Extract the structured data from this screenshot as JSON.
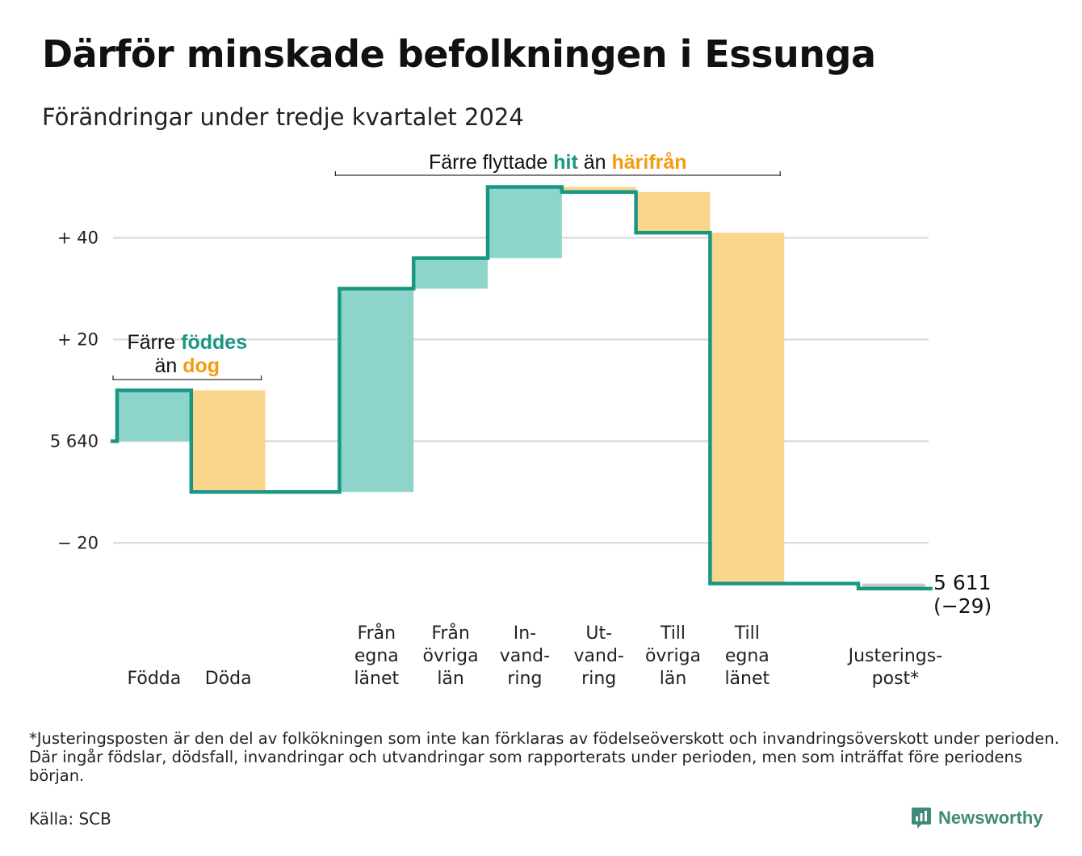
{
  "title": "Därför minskade befolkningen i Essunga",
  "subtitle": "Förändringar under tredje kvartalet 2024",
  "colors": {
    "inflow": "#1a9783",
    "inflow_fill": "#8dd5cb",
    "outflow": "#f39c12",
    "outflow_fill": "#fad58c",
    "adjustment_fill": "#c8c8c8",
    "gridline": "#dddddd",
    "brand": "#3f8a79"
  },
  "chart_data": {
    "type": "waterfall",
    "start_value": 5640,
    "end_value": 5611,
    "end_label": "5 611",
    "end_change_label": "(−29)",
    "y_ticks": [
      {
        "value": 40,
        "label": "+ 40"
      },
      {
        "value": 20,
        "label": "+ 20"
      },
      {
        "value": 0,
        "label": "5 640"
      },
      {
        "value": -20,
        "label": "− 20"
      }
    ],
    "ylim": [
      -36,
      55
    ],
    "grid": true,
    "steps": [
      {
        "label_lines": [
          "Födda"
        ],
        "delta": 10,
        "kind": "in"
      },
      {
        "label_lines": [
          "Döda"
        ],
        "delta": -20,
        "kind": "out"
      },
      {
        "label_lines": [],
        "delta": 0,
        "kind": "gap"
      },
      {
        "label_lines": [
          "Från",
          "egna",
          "länet"
        ],
        "delta": 40,
        "kind": "in"
      },
      {
        "label_lines": [
          "Från",
          "övriga",
          "län"
        ],
        "delta": 6,
        "kind": "in"
      },
      {
        "label_lines": [
          "In-",
          "vand-",
          "ring"
        ],
        "delta": 14,
        "kind": "in"
      },
      {
        "label_lines": [
          "Ut-",
          "vand-",
          "ring"
        ],
        "delta": -1,
        "kind": "out"
      },
      {
        "label_lines": [
          "Till",
          "övriga",
          "län"
        ],
        "delta": -8,
        "kind": "out"
      },
      {
        "label_lines": [
          "Till",
          "egna",
          "länet"
        ],
        "delta": -69,
        "kind": "out"
      },
      {
        "label_lines": [],
        "delta": 0,
        "kind": "gap"
      },
      {
        "label_lines": [
          "Justerings-",
          "post*"
        ],
        "delta": -1,
        "kind": "adjust"
      }
    ],
    "annotations": [
      {
        "first_step": 0,
        "last_step": 1,
        "lines": [
          [
            {
              "text": "Färre ",
              "style": "plain"
            },
            {
              "text": "föddes",
              "style": "in"
            }
          ],
          [
            {
              "text": "än ",
              "style": "plain"
            },
            {
              "text": "dog",
              "style": "out"
            }
          ]
        ]
      },
      {
        "first_step": 3,
        "last_step": 8,
        "lines": [
          [
            {
              "text": "Färre flyttade ",
              "style": "plain"
            },
            {
              "text": "hit",
              "style": "in"
            },
            {
              "text": "  än ",
              "style": "plain"
            },
            {
              "text": "härifrån",
              "style": "out"
            }
          ]
        ]
      }
    ]
  },
  "footnote": "*Justeringsposten är den del av folkökningen som inte kan förklaras av födelseöverskott och invandringsöverskott under perioden. Där ingår födslar, dödsfall, invandringar och utvandringar som rapporterats under perioden, men som inträffat före periodens början.",
  "source": "Källa: SCB",
  "brand": {
    "name": "Newsworthy",
    "icon": "newsworthy-logo-icon"
  }
}
